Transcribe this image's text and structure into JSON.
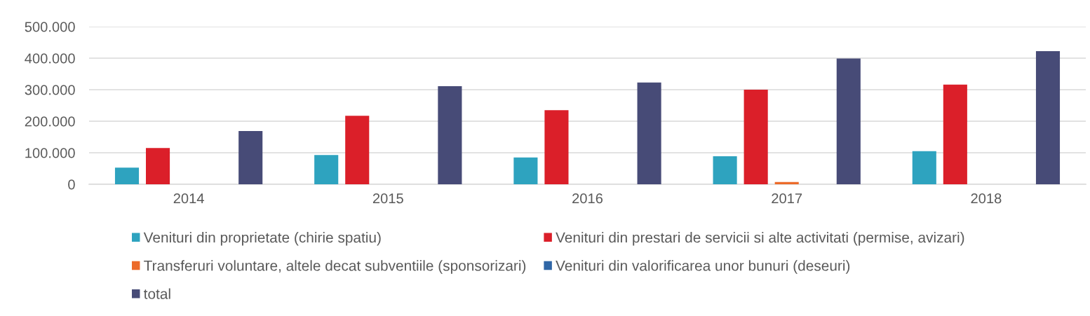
{
  "chart_data": {
    "type": "bar",
    "categories": [
      "2014",
      "2015",
      "2016",
      "2017",
      "2018"
    ],
    "series": [
      {
        "name": "Venituri din proprietate (chirie spatiu)",
        "color": "#2ea3bf",
        "values": [
          53000,
          93000,
          85000,
          89000,
          105000
        ]
      },
      {
        "name": "Venituri din prestari de servicii si alte activitati (permise, avizari)",
        "color": "#db1f29",
        "values": [
          115000,
          217000,
          235000,
          300000,
          316000
        ]
      },
      {
        "name": "Transferuri voluntare, altele decat subventiile (sponsorizari)",
        "color": "#ec6b2a",
        "values": [
          null,
          null,
          null,
          7000,
          null
        ]
      },
      {
        "name": "Venituri din valorificarea unor bunuri (deseuri)",
        "color": "#2f66a6",
        "values": [
          null,
          null,
          null,
          null,
          null
        ]
      },
      {
        "name": "total",
        "color": "#474b77",
        "values": [
          169000,
          311000,
          323000,
          399000,
          422000
        ]
      }
    ],
    "ylim": [
      0,
      500000
    ],
    "yticks": [
      0,
      {
        "value": 100000,
        "label": "100.000"
      },
      {
        "value": 200000,
        "label": "200.000"
      },
      {
        "value": 300000,
        "label": "300.000"
      },
      {
        "value": 400000,
        "label": "400.000"
      },
      {
        "value": 500000,
        "label": "500.000"
      }
    ],
    "grid": "y",
    "legend": "bottom"
  }
}
